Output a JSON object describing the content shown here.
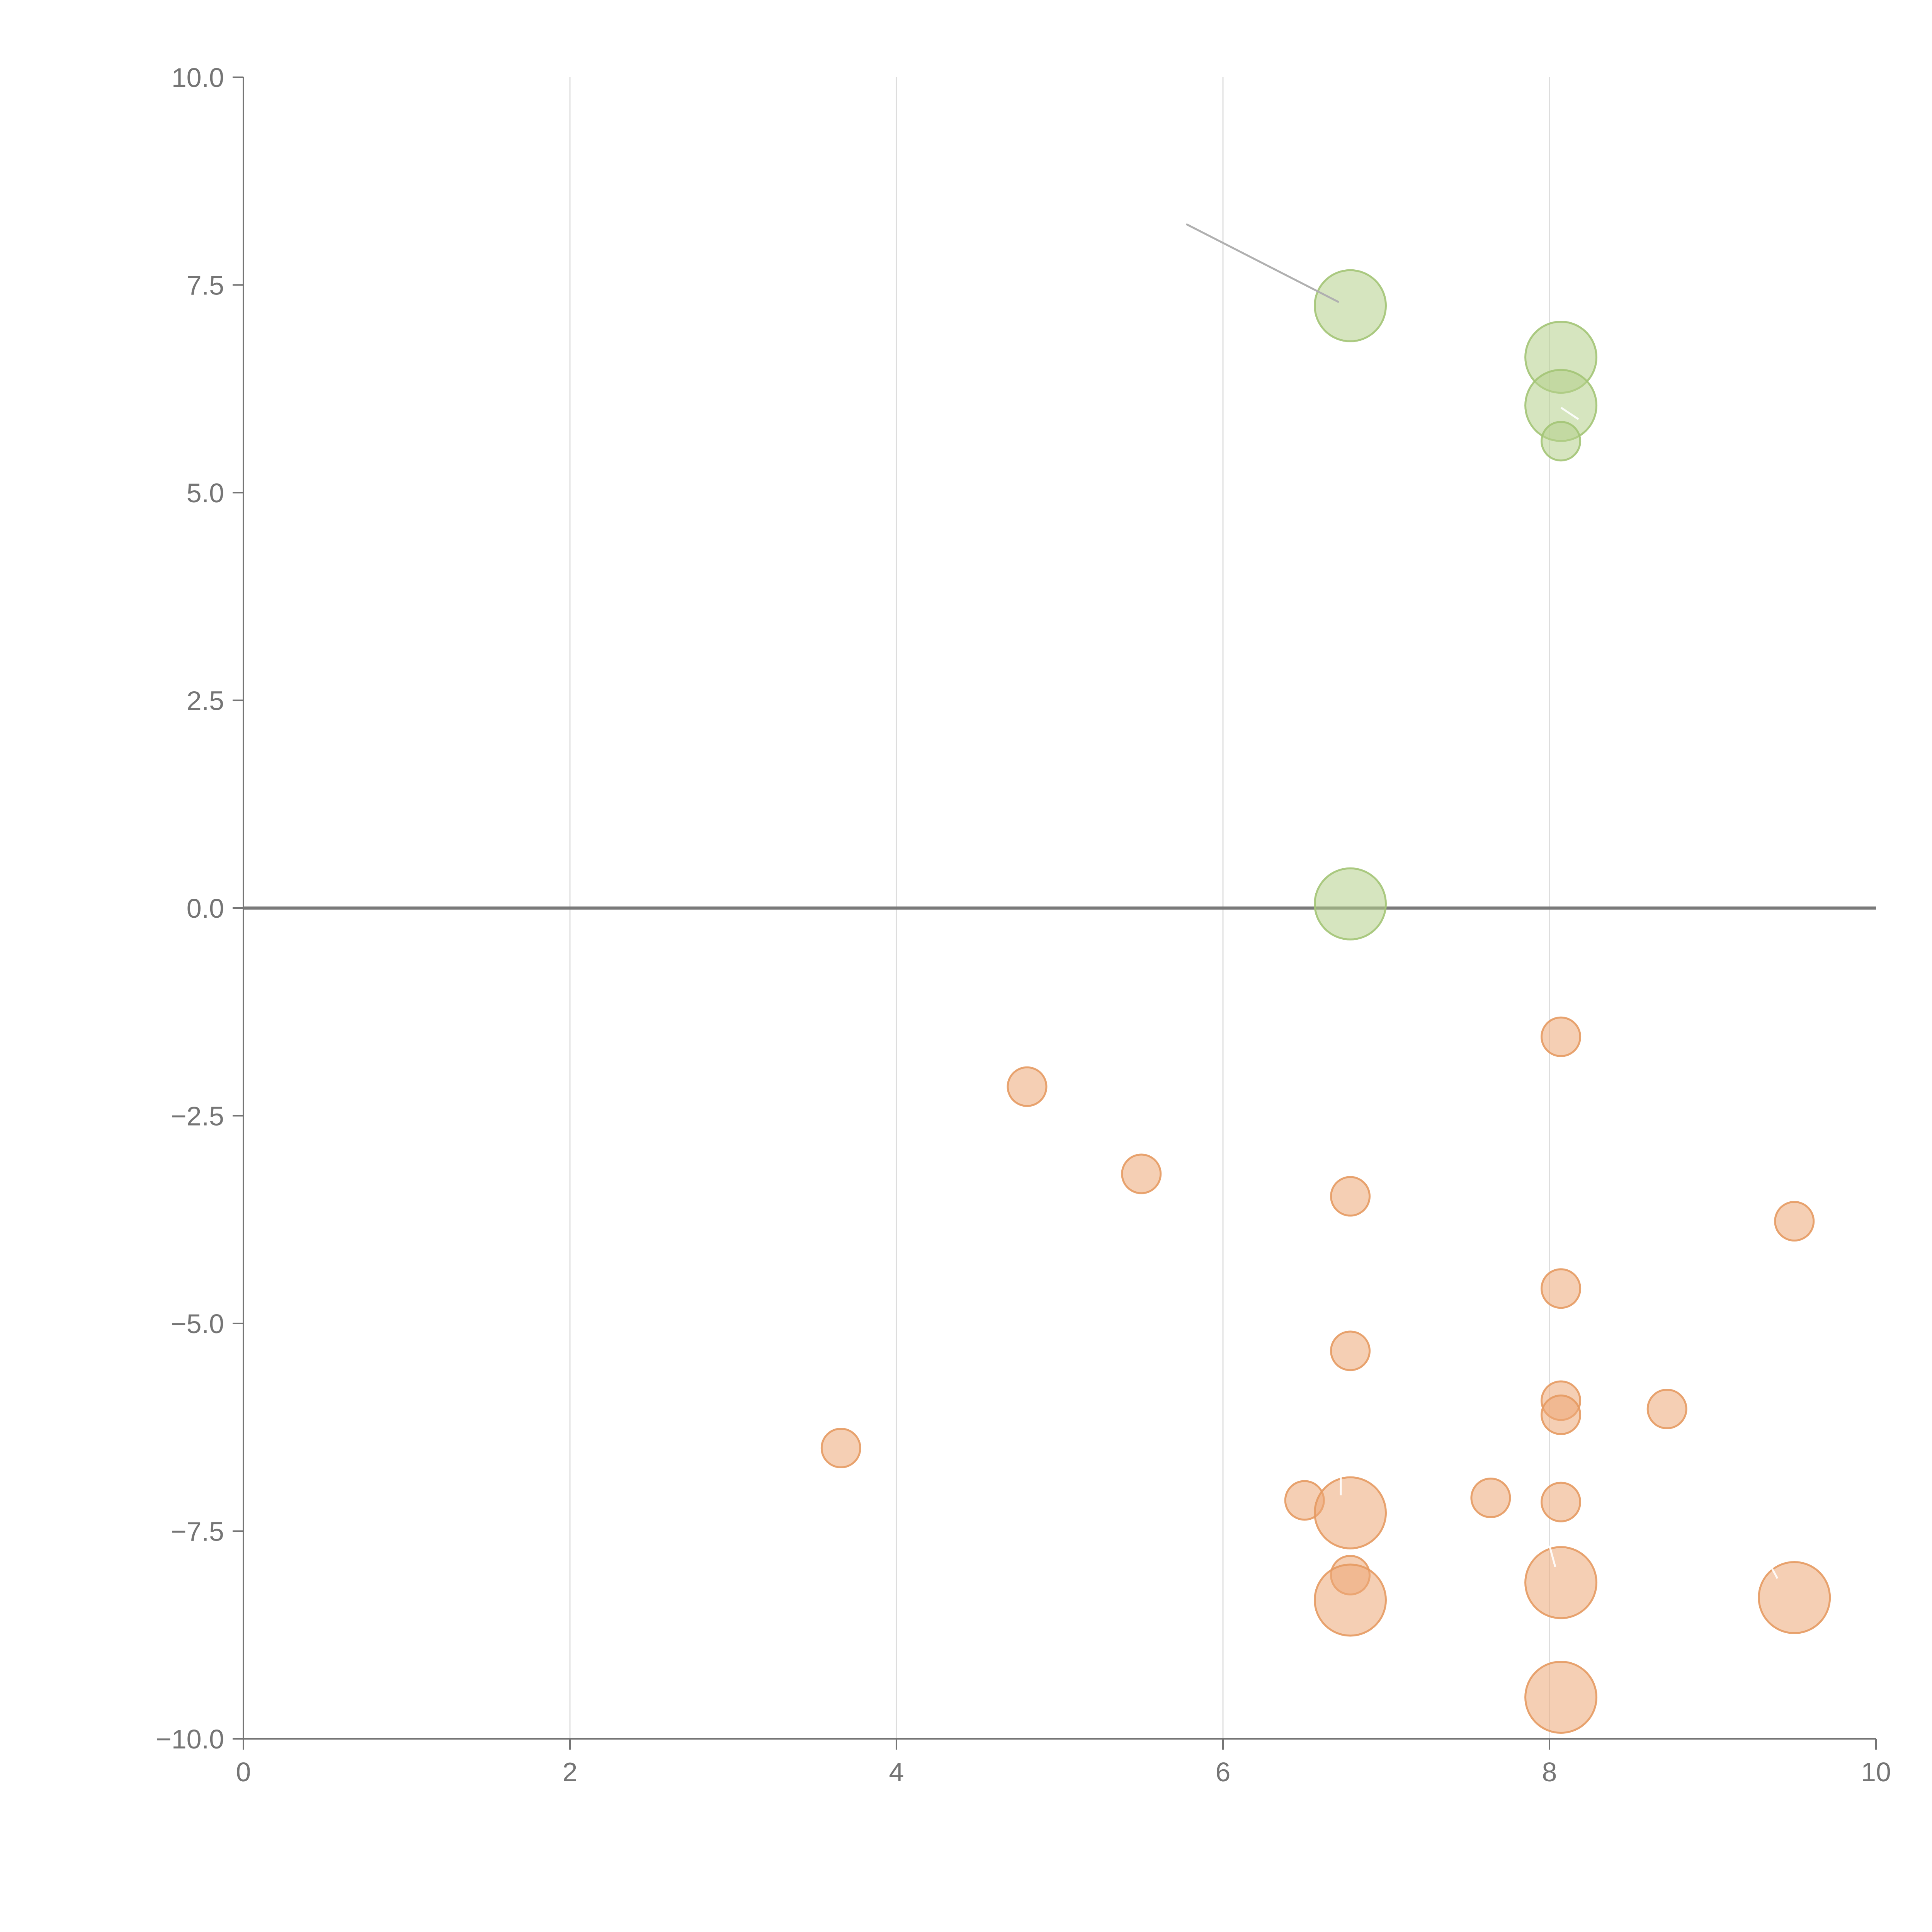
{
  "chart_data": {
    "type": "scatter",
    "subtype": "bubble",
    "title": "",
    "xlabel": "",
    "ylabel": "",
    "xlim": [
      0,
      10
    ],
    "ylim": [
      -10,
      10
    ],
    "x_ticks": [
      0,
      2,
      4,
      6,
      8,
      10
    ],
    "x_tick_labels": [
      "0",
      "2",
      "4",
      "6",
      "8",
      "10"
    ],
    "y_ticks": [
      10,
      7.5,
      5,
      2.5,
      0,
      -2.5,
      -5,
      -7.5,
      -10
    ],
    "y_tick_labels": [
      "10.0",
      "7.5",
      "5.0",
      "2.5",
      "0.0",
      "−2.5",
      "−5.0",
      "−7.5",
      "−10.0"
    ],
    "grid": {
      "vertical": true,
      "horizontal": false
    },
    "zero_line": true,
    "legend": "none",
    "colors": {
      "positive_fill": "#b5d08a",
      "positive_stroke": "#a3c476",
      "negative_fill": "#eca876",
      "negative_stroke": "#e59a62"
    },
    "series": [
      {
        "color_key": "positive",
        "points": [
          {
            "x": 6.78,
            "y": 7.25,
            "size": 3
          },
          {
            "x": 8.07,
            "y": 6.63,
            "size": 3
          },
          {
            "x": 8.07,
            "y": 6.05,
            "size": 3
          },
          {
            "x": 8.07,
            "y": 5.62,
            "size": 1
          },
          {
            "x": 6.78,
            "y": 0.05,
            "size": 3
          }
        ]
      },
      {
        "color_key": "negative",
        "points": [
          {
            "x": 8.07,
            "y": -1.55,
            "size": 1
          },
          {
            "x": 4.8,
            "y": -2.15,
            "size": 1
          },
          {
            "x": 5.5,
            "y": -3.2,
            "size": 1
          },
          {
            "x": 6.78,
            "y": -3.47,
            "size": 1
          },
          {
            "x": 9.5,
            "y": -3.77,
            "size": 1
          },
          {
            "x": 8.07,
            "y": -4.58,
            "size": 1
          },
          {
            "x": 6.78,
            "y": -5.33,
            "size": 1
          },
          {
            "x": 8.07,
            "y": -5.93,
            "size": 1
          },
          {
            "x": 8.07,
            "y": -6.1,
            "size": 1
          },
          {
            "x": 8.72,
            "y": -6.03,
            "size": 1
          },
          {
            "x": 3.66,
            "y": -6.5,
            "size": 1
          },
          {
            "x": 6.5,
            "y": -7.13,
            "size": 1
          },
          {
            "x": 7.64,
            "y": -7.1,
            "size": 1
          },
          {
            "x": 8.07,
            "y": -7.15,
            "size": 1
          },
          {
            "x": 6.78,
            "y": -7.28,
            "size": 3
          },
          {
            "x": 6.78,
            "y": -8.03,
            "size": 1
          },
          {
            "x": 8.07,
            "y": -8.12,
            "size": 3
          },
          {
            "x": 6.78,
            "y": -8.33,
            "size": 3
          },
          {
            "x": 9.5,
            "y": -8.3,
            "size": 3
          },
          {
            "x": 8.07,
            "y": -9.5,
            "size": 3
          }
        ]
      }
    ]
  }
}
